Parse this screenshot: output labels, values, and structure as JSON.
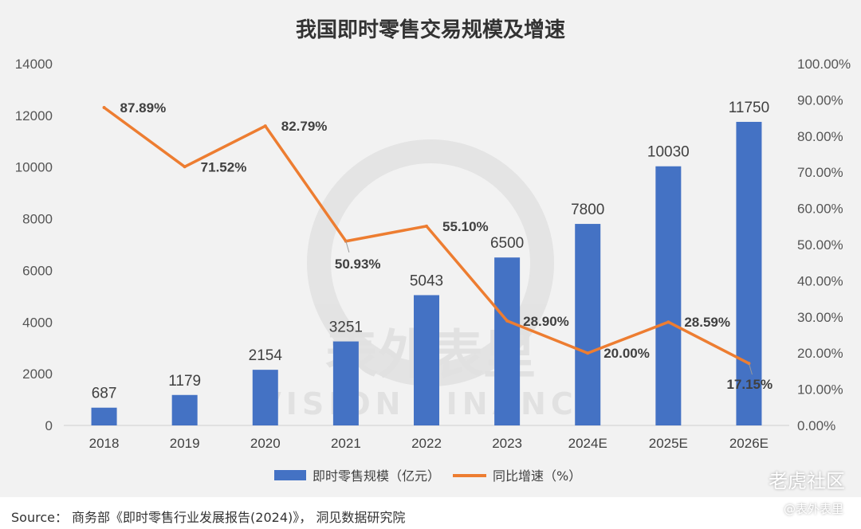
{
  "chart_data": {
    "type": "bar",
    "title": "我国即时零售交易规模及增速",
    "categories": [
      "2018",
      "2019",
      "2020",
      "2021",
      "2022",
      "2023",
      "2024E",
      "2025E",
      "2026E"
    ],
    "series": [
      {
        "name": "即时零售规模（亿元）",
        "type": "bar",
        "axis": "left",
        "color": "#4472c4",
        "values": [
          687,
          1179,
          2154,
          3251,
          5043,
          6500,
          7800,
          10030,
          11750
        ],
        "labels": [
          "687",
          "1179",
          "2154",
          "3251",
          "5043",
          "6500",
          "7800",
          "10030",
          "11750"
        ]
      },
      {
        "name": "同比增速（%）",
        "type": "line",
        "axis": "right",
        "color": "#ed7d31",
        "values": [
          87.89,
          71.52,
          82.79,
          50.93,
          55.1,
          28.9,
          20.0,
          28.59,
          17.15
        ],
        "labels": [
          "87.89%",
          "71.52%",
          "82.79%",
          "50.93%",
          "55.10%",
          "28.90%",
          "20.00%",
          "28.59%",
          "17.15%"
        ]
      }
    ],
    "y_left": {
      "ylim": [
        0,
        14000
      ],
      "ticks": [
        "0",
        "2000",
        "4000",
        "6000",
        "8000",
        "10000",
        "12000",
        "14000"
      ]
    },
    "y_right": {
      "ylim": [
        0,
        100
      ],
      "ticks": [
        "0.00%",
        "10.00%",
        "20.00%",
        "30.00%",
        "40.00%",
        "50.00%",
        "60.00%",
        "70.00%",
        "80.00%",
        "90.00%",
        "100.00%"
      ]
    },
    "grid": false,
    "legend_position": "bottom"
  },
  "watermark": {
    "cn": "表外表里",
    "en": "VISION FINANCE"
  },
  "source": "Source：  商务部《即时零售行业发展报告(2024)》，  洞见数据研究院",
  "corner_watermark": "老虎社区",
  "corner_watermark2": "@表外表里"
}
